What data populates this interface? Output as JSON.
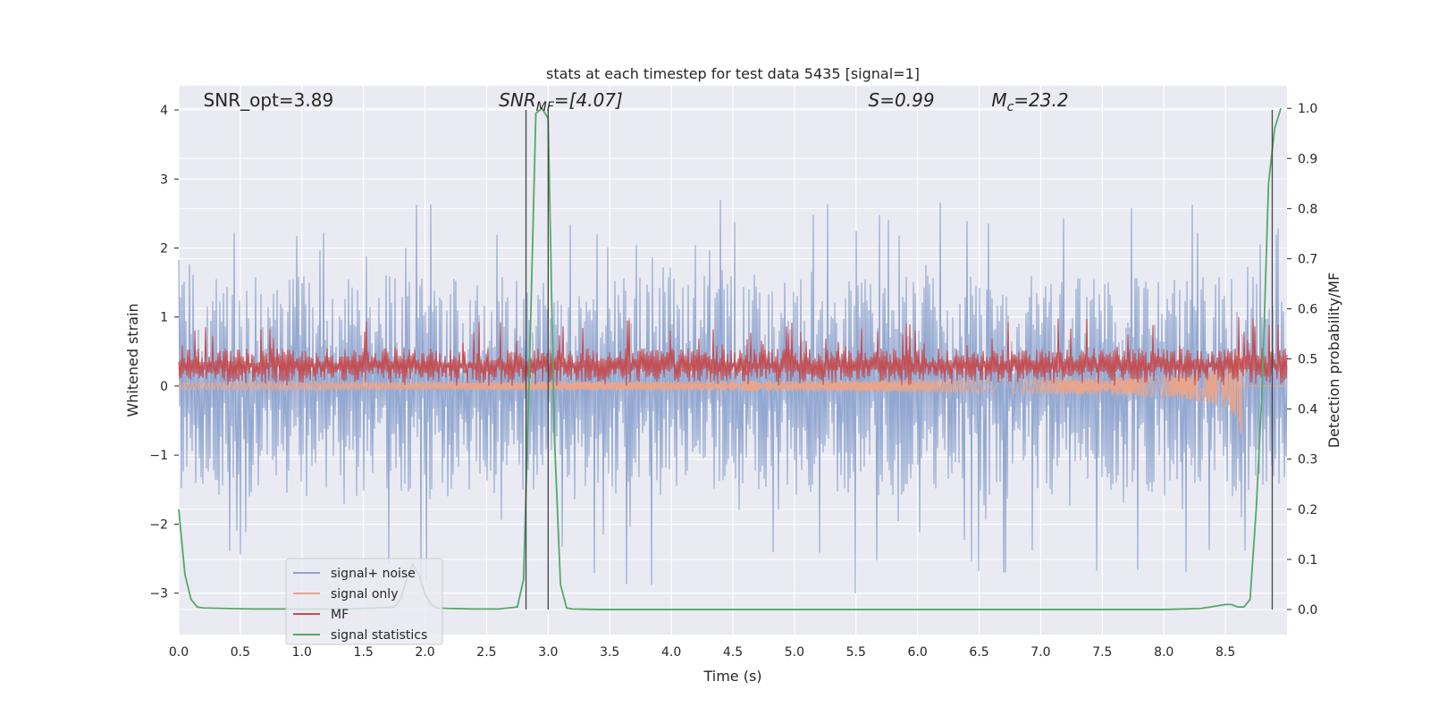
{
  "chart_data": {
    "type": "line",
    "title": "stats at each timestep for test data 5435 [signal=1]",
    "xlabel": "Time (s)",
    "ylabel_left": "Whitened strain",
    "ylabel_right": "Detection probability/MF",
    "xlim": [
      0.0,
      9.0
    ],
    "ylim_left": [
      -3.6,
      4.35
    ],
    "ylim_right": [
      -0.05,
      1.045
    ],
    "grid": true,
    "legend_position": "lower-left",
    "x_ticks": [
      0.0,
      0.5,
      1.0,
      1.5,
      2.0,
      2.5,
      3.0,
      3.5,
      4.0,
      4.5,
      5.0,
      5.5,
      6.0,
      6.5,
      7.0,
      7.5,
      8.0,
      8.5
    ],
    "x_tick_labels": [
      "0.0",
      "0.5",
      "1.0",
      "1.5",
      "2.0",
      "2.5",
      "3.0",
      "3.5",
      "4.0",
      "4.5",
      "5.0",
      "5.5",
      "6.0",
      "6.5",
      "7.0",
      "7.5",
      "8.0",
      "8.5"
    ],
    "y_left_ticks": [
      -3,
      -2,
      -1,
      0,
      1,
      2,
      3,
      4
    ],
    "y_left_tick_labels": [
      "−3",
      "−2",
      "−1",
      "0",
      "1",
      "2",
      "3",
      "4"
    ],
    "y_right_ticks": [
      0.0,
      0.1,
      0.2,
      0.3,
      0.4,
      0.5,
      0.6,
      0.7,
      0.8,
      0.9,
      1.0
    ],
    "y_right_tick_labels": [
      "0.0",
      "0.1",
      "0.2",
      "0.3",
      "0.4",
      "0.5",
      "0.6",
      "0.7",
      "0.8",
      "0.9",
      "1.0"
    ],
    "annotations": [
      {
        "text": "SNR_opt=3.89",
        "x": 0.2,
        "y": 4.05
      },
      {
        "text": "SNR",
        "sub": "MF",
        "suffix": "=[4.07]",
        "italic": true,
        "x": 2.6,
        "y": 4.05
      },
      {
        "text": "S",
        "suffix": "=0.99",
        "italic": true,
        "x": 5.6,
        "y": 4.05
      },
      {
        "text": "M",
        "sub": "c",
        "suffix": "=23.2",
        "italic": true,
        "x": 6.6,
        "y": 4.05
      }
    ],
    "vertical_lines": [
      2.82,
      3.0,
      8.88
    ],
    "series": [
      {
        "name": "signal+ noise",
        "axis": "left",
        "color": "#8ea4cf",
        "style": "noise",
        "upper_typical": 1.6,
        "lower_typical": -1.6,
        "upper_extreme": 2.7,
        "lower_extreme": -3.2
      },
      {
        "name": "signal only",
        "axis": "left",
        "color": "#e8a58d",
        "style": "chirp",
        "amplitude_end": -0.8,
        "chirp_end": 8.65
      },
      {
        "name": "MF",
        "axis": "left",
        "color": "#c44e52",
        "style": "noise",
        "baseline": 0.25,
        "upper_typical": 0.55,
        "lower_typical": 0.05,
        "upper_extreme": 1.0,
        "lower_extreme": 0.0
      },
      {
        "name": "signal statistics",
        "axis": "right",
        "color": "#55a868",
        "style": "line",
        "x": [
          0.0,
          0.05,
          0.1,
          0.15,
          0.2,
          0.4,
          0.6,
          0.8,
          1.0,
          1.2,
          1.4,
          1.6,
          1.75,
          1.8,
          1.85,
          1.9,
          1.95,
          2.0,
          2.05,
          2.1,
          2.2,
          2.4,
          2.6,
          2.75,
          2.8,
          2.85,
          2.9,
          2.95,
          3.0,
          3.05,
          3.1,
          3.15,
          3.2,
          3.4,
          3.6,
          4.0,
          5.0,
          6.0,
          7.0,
          7.5,
          8.0,
          8.3,
          8.45,
          8.5,
          8.55,
          8.6,
          8.65,
          8.7,
          8.75,
          8.8,
          8.85,
          8.9,
          8.95
        ],
        "values": [
          0.2,
          0.07,
          0.02,
          0.005,
          0.003,
          0.002,
          0.001,
          0.001,
          0.001,
          0.001,
          0.001,
          0.003,
          0.005,
          0.02,
          0.06,
          0.09,
          0.07,
          0.03,
          0.01,
          0.003,
          0.002,
          0.001,
          0.001,
          0.005,
          0.06,
          0.5,
          0.99,
          1.0,
          0.98,
          0.35,
          0.05,
          0.003,
          0.001,
          0.0,
          0.0,
          0.0,
          0.0,
          0.0,
          0.0,
          0.0,
          0.0,
          0.002,
          0.008,
          0.01,
          0.01,
          0.005,
          0.005,
          0.02,
          0.2,
          0.45,
          0.85,
          0.96,
          1.0
        ]
      }
    ]
  }
}
